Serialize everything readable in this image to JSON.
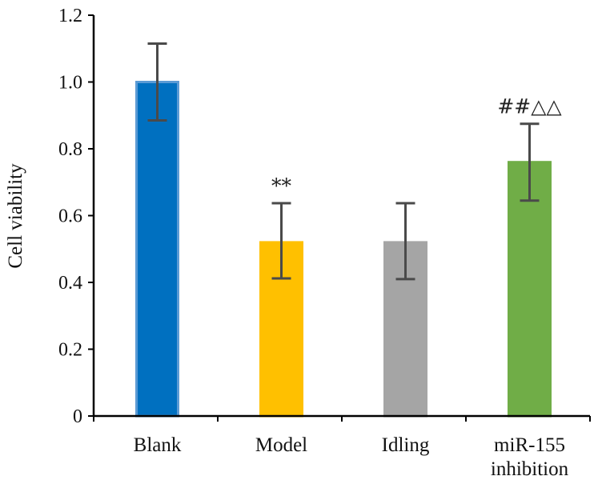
{
  "chart_data": {
    "type": "bar",
    "categories": [
      "Blank",
      "Model",
      "Idling",
      "miR-155 inhibition"
    ],
    "category_lines": [
      [
        "Blank"
      ],
      [
        "Model"
      ],
      [
        "Idling"
      ],
      [
        "miR-155",
        "inhibition"
      ]
    ],
    "values": [
      1.0,
      0.52,
      0.52,
      0.76
    ],
    "error_high": [
      1.115,
      0.637,
      0.637,
      0.875
    ],
    "error_low": [
      0.885,
      0.412,
      0.41,
      0.645
    ],
    "annotations": [
      "",
      "**",
      "",
      "##△△"
    ],
    "colors": [
      "#0070C0",
      "#FFC000",
      "#A5A5A5",
      "#70AD47"
    ],
    "bar_edge_colors": [
      "#5B9BD5",
      "#FFC000",
      "#A5A5A5",
      "#70AD47"
    ],
    "ylabel": "Cell viability",
    "xlabel": "",
    "ylim": [
      0,
      1.2
    ],
    "yticks": [
      0,
      0.2,
      0.4,
      0.6,
      0.8,
      1.0,
      1.2
    ],
    "ytick_labels": [
      "0",
      "0.2",
      "0.4",
      "0.6",
      "0.8",
      "1.0",
      "1.2"
    ],
    "grid": false,
    "legend": "none"
  }
}
